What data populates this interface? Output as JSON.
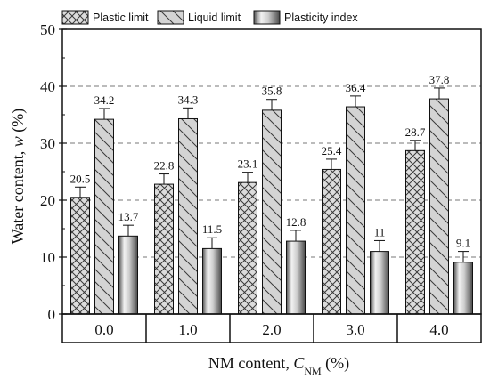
{
  "chart_data": {
    "type": "bar",
    "categories": [
      "0.0",
      "1.0",
      "2.0",
      "3.0",
      "4.0"
    ],
    "series": [
      {
        "name": "Plastic limit",
        "values": [
          20.5,
          22.8,
          23.1,
          25.4,
          28.7
        ],
        "errors": [
          1.8,
          1.8,
          1.8,
          1.8,
          1.8
        ],
        "labels": [
          "20.5",
          "22.8",
          "23.1",
          "25.4",
          "28.7"
        ],
        "pattern": "crosshatch"
      },
      {
        "name": "Liquid limit",
        "values": [
          34.2,
          34.3,
          35.8,
          36.4,
          37.8
        ],
        "errors": [
          1.9,
          1.9,
          1.9,
          1.9,
          1.9
        ],
        "labels": [
          "34.2",
          "34.3",
          "35.8",
          "36.4",
          "37.8"
        ],
        "pattern": "backslash"
      },
      {
        "name": "Plasticity index",
        "values": [
          13.7,
          11.5,
          12.8,
          11.0,
          9.1
        ],
        "errors": [
          1.9,
          1.9,
          1.9,
          1.9,
          1.9
        ],
        "labels": [
          "13.7",
          "11.5",
          "12.8",
          "11",
          "9.1"
        ],
        "pattern": "vgradient"
      }
    ],
    "title": "",
    "ylabel": {
      "main": "Water content, ",
      "var": "w",
      "unit": " (%)"
    },
    "xlabel": {
      "main": "NM content, ",
      "var": "C",
      "sub": "NM",
      "unit": " (%)"
    },
    "ylim": [
      0,
      50
    ],
    "yticks": [
      0,
      10,
      20,
      30,
      40,
      50
    ],
    "grid": "horizontal-dashed",
    "legend": "top"
  }
}
